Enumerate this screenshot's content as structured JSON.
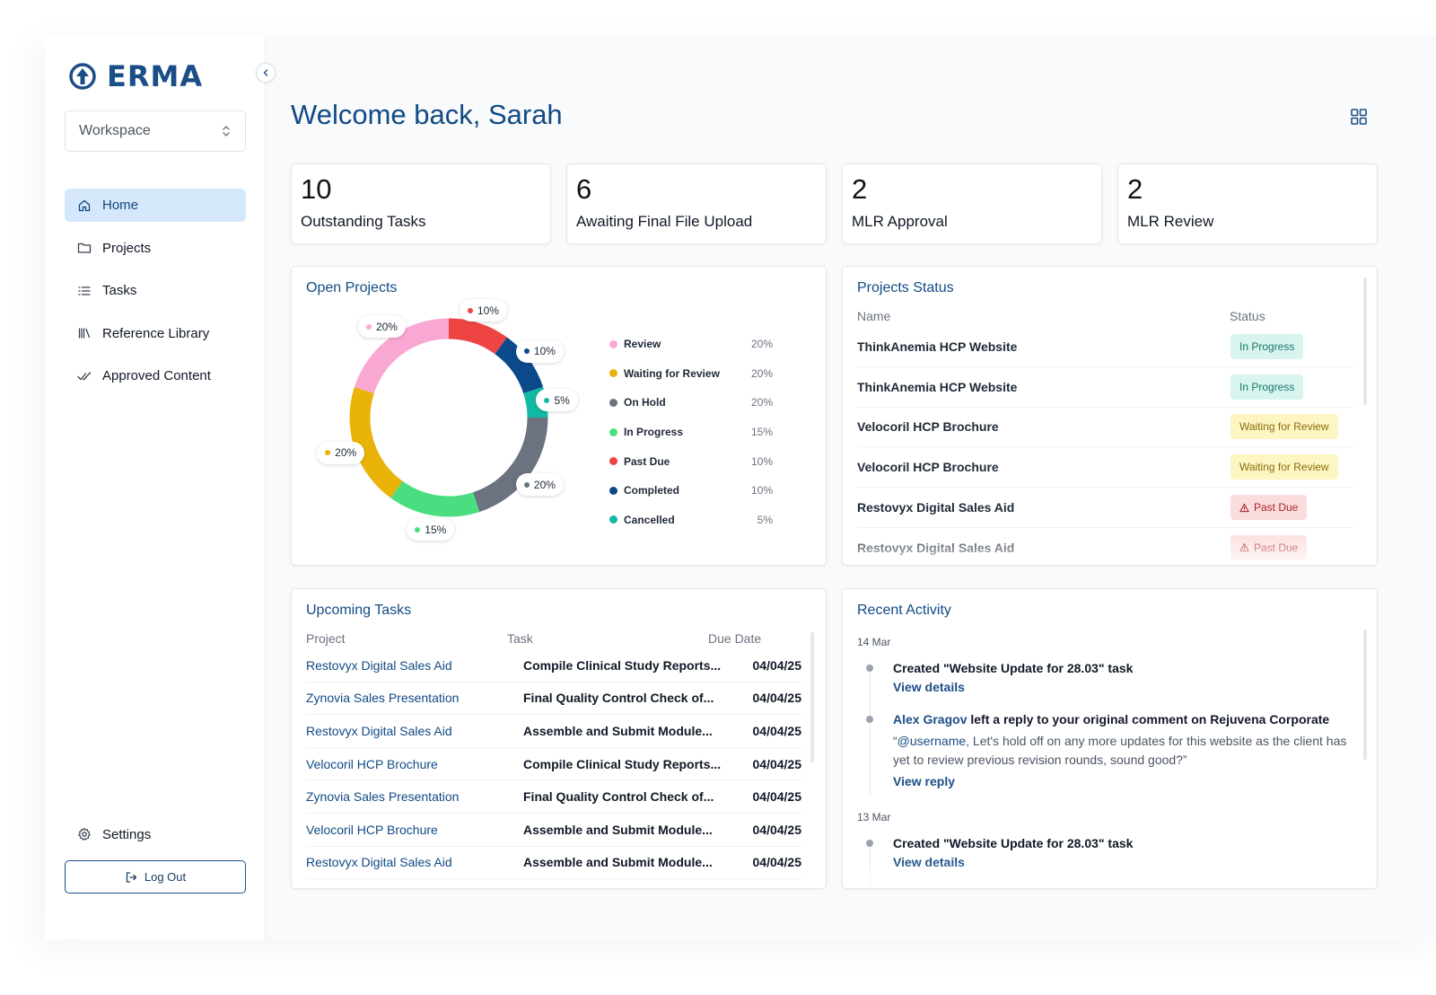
{
  "brand": {
    "name": "ERMA",
    "color": "#1b4e86"
  },
  "sidebar": {
    "workspace_label": "Workspace",
    "items": [
      {
        "label": "Home",
        "icon": "home-icon",
        "active": true
      },
      {
        "label": "Projects",
        "icon": "folder-icon"
      },
      {
        "label": "Tasks",
        "icon": "list-icon"
      },
      {
        "label": "Reference Library",
        "icon": "library-icon"
      },
      {
        "label": "Approved Content",
        "icon": "double-check-icon"
      }
    ],
    "settings_label": "Settings",
    "logout_label": "Log Out"
  },
  "header": {
    "title": "Welcome back, Sarah"
  },
  "stats": [
    {
      "value": "10",
      "label": "Outstanding Tasks"
    },
    {
      "value": "6",
      "label": "Awaiting Final File Upload"
    },
    {
      "value": "2",
      "label": "MLR Approval"
    },
    {
      "value": "2",
      "label": "MLR Review"
    }
  ],
  "open_projects": {
    "title": "Open Projects",
    "legend": [
      {
        "name": "Review",
        "pct": "20%",
        "color": "#f9a8d4"
      },
      {
        "name": "Waiting for Review",
        "pct": "20%",
        "color": "#eab308"
      },
      {
        "name": "On Hold",
        "pct": "20%",
        "color": "#6b7280"
      },
      {
        "name": "In Progress",
        "pct": "15%",
        "color": "#4ade80"
      },
      {
        "name": "Past Due",
        "pct": "10%",
        "color": "#ef4444"
      },
      {
        "name": "Completed",
        "pct": "10%",
        "color": "#0b4a8a"
      },
      {
        "name": "Cancelled",
        "pct": "5%",
        "color": "#14b8a6"
      }
    ],
    "slice_labels": [
      "10%",
      "10%",
      "5%",
      "20%",
      "15%",
      "20%",
      "20%"
    ]
  },
  "chart_data": {
    "type": "pie",
    "categories": [
      "Past Due",
      "Completed",
      "Cancelled",
      "On Hold",
      "In Progress",
      "Waiting for Review",
      "Review"
    ],
    "values": [
      10,
      10,
      5,
      20,
      15,
      20,
      20
    ],
    "title": "Open Projects"
  },
  "projects_status": {
    "title": "Projects Status",
    "col_name": "Name",
    "col_status": "Status",
    "rows": [
      {
        "name": "ThinkAnemia HCP Website",
        "status": "In Progress"
      },
      {
        "name": "ThinkAnemia HCP Website",
        "status": "In Progress"
      },
      {
        "name": "Velocoril HCP Brochure",
        "status": "Waiting for Review"
      },
      {
        "name": "Velocoril HCP Brochure",
        "status": "Waiting for Review"
      },
      {
        "name": "Restovyx Digital Sales Aid",
        "status": "Past Due"
      },
      {
        "name": "Restovyx Digital Sales Aid",
        "status": "Past Due"
      }
    ]
  },
  "upcoming_tasks": {
    "title": "Upcoming Tasks",
    "col_project": "Project",
    "col_task": "Task",
    "col_due": "Due Date",
    "rows": [
      {
        "project": "Restovyx Digital Sales Aid",
        "task": "Compile Clinical Study Reports...",
        "due": "04/04/25"
      },
      {
        "project": "Zynovia Sales Presentation",
        "task": "Final Quality Control Check of...",
        "due": "04/04/25"
      },
      {
        "project": "Restovyx Digital Sales Aid",
        "task": "Assemble and Submit Module...",
        "due": "04/04/25"
      },
      {
        "project": "Velocoril HCP Brochure",
        "task": "Compile Clinical Study Reports...",
        "due": "04/04/25"
      },
      {
        "project": "Zynovia Sales Presentation",
        "task": "Final Quality Control Check of...",
        "due": "04/04/25"
      },
      {
        "project": "Velocoril HCP Brochure",
        "task": "Assemble and Submit Module...",
        "due": "04/04/25"
      },
      {
        "project": "Restovyx Digital Sales Aid",
        "task": "Assemble and Submit Module...",
        "due": "04/04/25"
      }
    ]
  },
  "recent_activity": {
    "title": "Recent Activity",
    "date1": "14 Mar",
    "item1_text": "Created \"Website Update for 28.03\" task",
    "item1_link": "View details",
    "item2_user": "Alex Gragov",
    "item2_text": " left a reply to your original comment on Rejuvena Corporate",
    "item2_mention": "@username",
    "item2_quote": ", Let's hold off on any more updates for this website as the client has yet to review previous revision rounds, sound good?”",
    "item2_quote_open": "“",
    "item2_link": "View reply",
    "date2": "13 Mar",
    "item3_text": "Created \"Website Update for 28.03\" task",
    "item3_link": "View details"
  }
}
